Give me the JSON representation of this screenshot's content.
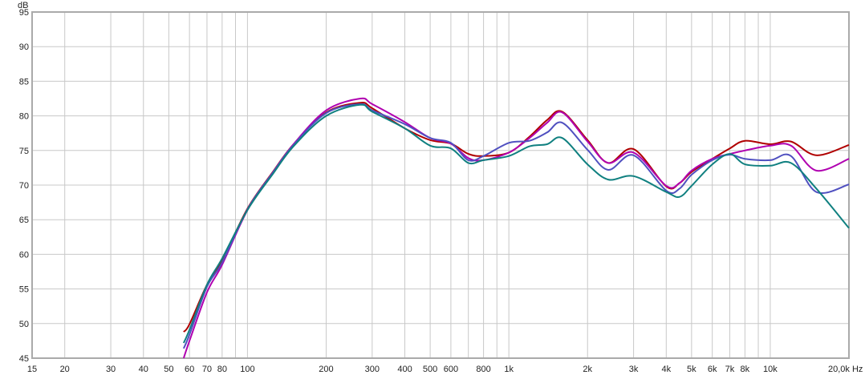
{
  "chart_data": {
    "type": "line",
    "ylabel": "dB",
    "xunit": "Hz",
    "xscale": "log",
    "xlim": [
      15,
      20000
    ],
    "ylim": [
      45,
      95
    ],
    "grid": true,
    "y_ticks": [
      "45",
      "50",
      "55",
      "60",
      "65",
      "70",
      "75",
      "80",
      "85",
      "90",
      "95"
    ],
    "x_ticks": [
      {
        "v": 15,
        "label": "15"
      },
      {
        "v": 20,
        "label": "20"
      },
      {
        "v": 30,
        "label": "30"
      },
      {
        "v": 40,
        "label": "40"
      },
      {
        "v": 50,
        "label": "50"
      },
      {
        "v": 60,
        "label": "60"
      },
      {
        "v": 70,
        "label": "70"
      },
      {
        "v": 80,
        "label": "80"
      },
      {
        "v": 100,
        "label": "100"
      },
      {
        "v": 200,
        "label": "200"
      },
      {
        "v": 300,
        "label": "300"
      },
      {
        "v": 400,
        "label": "400"
      },
      {
        "v": 500,
        "label": "500"
      },
      {
        "v": 600,
        "label": "600"
      },
      {
        "v": 800,
        "label": "800"
      },
      {
        "v": 1000,
        "label": "1k"
      },
      {
        "v": 2000,
        "label": "2k"
      },
      {
        "v": 3000,
        "label": "3k"
      },
      {
        "v": 4000,
        "label": "4k"
      },
      {
        "v": 5000,
        "label": "5k"
      },
      {
        "v": 6000,
        "label": "6k"
      },
      {
        "v": 7000,
        "label": "7k"
      },
      {
        "v": 8000,
        "label": "8k"
      },
      {
        "v": 10000,
        "label": "10k"
      },
      {
        "v": 20000,
        "label": "20,0k Hz"
      }
    ],
    "x": [
      57,
      60,
      70,
      80,
      100,
      125,
      150,
      200,
      270,
      300,
      400,
      500,
      600,
      700,
      800,
      1000,
      1200,
      1400,
      1600,
      2000,
      2400,
      3000,
      4000,
      4500,
      5000,
      6000,
      7000,
      8000,
      10000,
      12000,
      15000,
      20000
    ],
    "series": [
      {
        "color": "#b00000",
        "values": [
          48.8,
          49.9,
          55.6,
          59.1,
          66.6,
          71.9,
          75.9,
          80.5,
          81.9,
          81.1,
          78.2,
          76.5,
          76.0,
          74.5,
          74.2,
          74.7,
          77.0,
          79.4,
          80.6,
          76.5,
          73.2,
          75.2,
          69.8,
          70.3,
          71.9,
          73.8,
          75.3,
          76.4,
          75.9,
          76.3,
          74.3,
          75.8
        ]
      },
      {
        "color": "#b000b0",
        "values": [
          45.0,
          47.5,
          54.5,
          58.5,
          66.4,
          71.8,
          75.9,
          80.8,
          82.5,
          81.7,
          79.1,
          76.8,
          76.0,
          73.9,
          73.6,
          74.7,
          76.8,
          79.0,
          80.5,
          76.3,
          73.2,
          74.7,
          69.9,
          70.3,
          72.1,
          73.8,
          74.5,
          75.0,
          75.7,
          75.7,
          72.1,
          73.8
        ]
      },
      {
        "color": "#5050c0",
        "values": [
          46.4,
          48.4,
          55.3,
          58.8,
          66.5,
          71.8,
          75.8,
          80.4,
          81.7,
          80.8,
          78.8,
          76.8,
          76.1,
          73.6,
          74.2,
          76.1,
          76.4,
          77.6,
          79.0,
          75.1,
          72.2,
          74.3,
          69.2,
          69.5,
          71.5,
          73.6,
          74.4,
          73.8,
          73.6,
          74.2,
          69.0,
          70.1
        ]
      },
      {
        "color": "#108080",
        "values": [
          47.2,
          49.1,
          55.6,
          59.4,
          66.4,
          71.6,
          75.6,
          80.0,
          81.6,
          80.6,
          78.2,
          75.7,
          75.3,
          73.2,
          73.6,
          74.2,
          75.6,
          75.9,
          76.8,
          73.0,
          70.8,
          71.3,
          69.0,
          68.3,
          69.9,
          73.0,
          74.5,
          73.0,
          72.8,
          73.2,
          69.5,
          63.8
        ]
      }
    ]
  }
}
